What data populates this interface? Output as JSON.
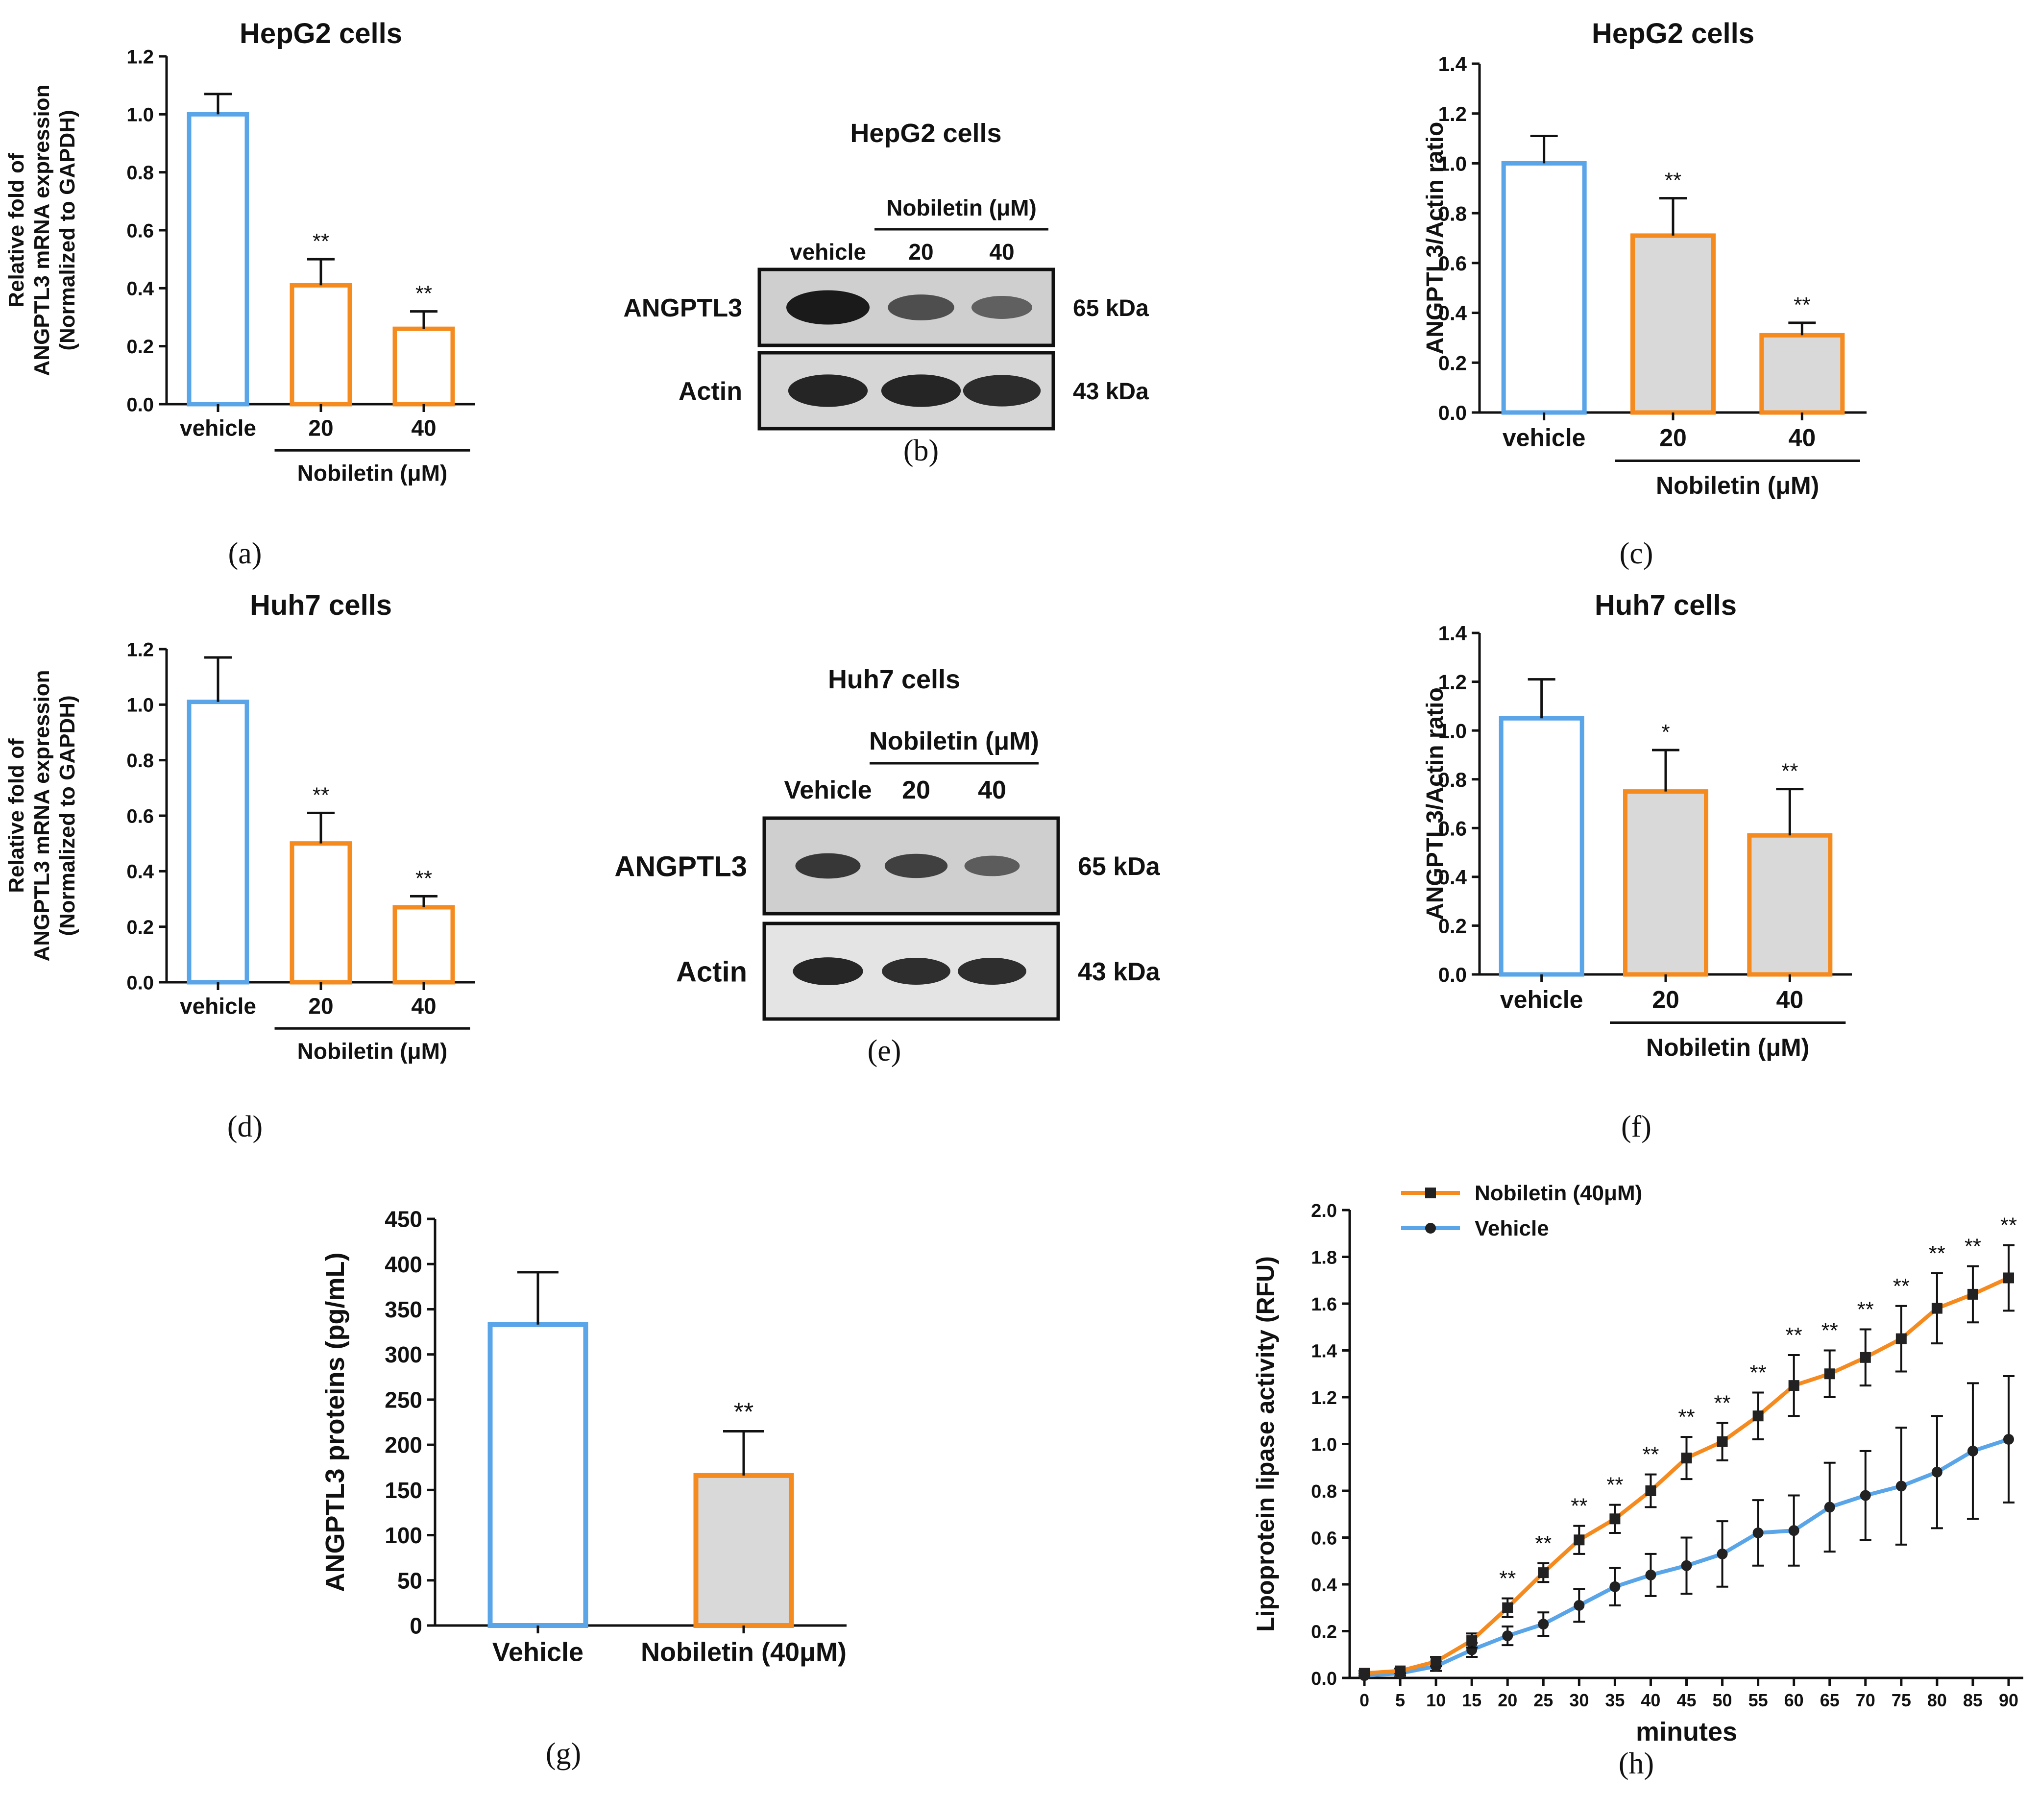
{
  "colors": {
    "vehicle": "#5aa4e8",
    "treatment": "#f58a1f",
    "treatment_fill": "#d9d9d9",
    "axis": "#111111",
    "blot_bg": "#d3d3d3",
    "band": "#1a1a1a"
  },
  "chart_data": [
    {
      "id": "a",
      "type": "bar",
      "panel_label": "(a)",
      "title": "HepG2 cells",
      "ylabel_lines": [
        "Relative fold of",
        "ANGPTL3 mRNA expression",
        "(Normalized to GAPDH)"
      ],
      "categories": [
        "vehicle",
        "20",
        "40"
      ],
      "values": [
        1.0,
        0.41,
        0.26
      ],
      "errors": [
        0.07,
        0.09,
        0.06
      ],
      "significance": [
        "",
        "**",
        "**"
      ],
      "filled": [
        false,
        false,
        false
      ],
      "ylim": [
        0,
        1.2
      ],
      "yticks": [
        "0.0",
        "0.2",
        "0.4",
        "0.6",
        "0.8",
        "1.0",
        "1.2"
      ],
      "group_label": "Nobiletin (μM)",
      "grid": false
    },
    {
      "id": "c",
      "type": "bar",
      "panel_label": "(c)",
      "title": "HepG2 cells",
      "ylabel_lines": [
        "ANGPTL3/Actin ratio"
      ],
      "categories": [
        "vehicle",
        "20",
        "40"
      ],
      "values": [
        1.0,
        0.71,
        0.31
      ],
      "errors": [
        0.11,
        0.15,
        0.05
      ],
      "significance": [
        "",
        "**",
        "**"
      ],
      "filled": [
        false,
        true,
        true
      ],
      "ylim": [
        0,
        1.4
      ],
      "yticks": [
        "0.0",
        "0.2",
        "0.4",
        "0.6",
        "0.8",
        "1.0",
        "1.2",
        "1.4"
      ],
      "group_label": "Nobiletin (μM)",
      "grid": false
    },
    {
      "id": "d",
      "type": "bar",
      "panel_label": "(d)",
      "title": "Huh7 cells",
      "ylabel_lines": [
        "Relative fold of",
        "ANGPTL3 mRNA expression",
        "(Normalized to GAPDH)"
      ],
      "categories": [
        "vehicle",
        "20",
        "40"
      ],
      "values": [
        1.01,
        0.5,
        0.27
      ],
      "errors": [
        0.16,
        0.11,
        0.04
      ],
      "significance": [
        "",
        "**",
        "**"
      ],
      "filled": [
        false,
        false,
        false
      ],
      "ylim": [
        0,
        1.2
      ],
      "yticks": [
        "0.0",
        "0.2",
        "0.4",
        "0.6",
        "0.8",
        "1.0",
        "1.2"
      ],
      "group_label": "Nobiletin (μM)",
      "grid": false
    },
    {
      "id": "f",
      "type": "bar",
      "panel_label": "(f)",
      "title": "Huh7 cells",
      "ylabel_lines": [
        "ANGPTL3/Actin ratio"
      ],
      "categories": [
        "vehicle",
        "20",
        "40"
      ],
      "values": [
        1.05,
        0.75,
        0.57
      ],
      "errors": [
        0.16,
        0.17,
        0.19
      ],
      "significance": [
        "",
        "*",
        "**"
      ],
      "filled": [
        false,
        true,
        true
      ],
      "ylim": [
        0,
        1.4
      ],
      "yticks": [
        "0.0",
        "0.2",
        "0.4",
        "0.6",
        "0.8",
        "1.0",
        "1.2",
        "1.4"
      ],
      "group_label": "Nobiletin (μM)",
      "grid": false
    },
    {
      "id": "g",
      "type": "bar",
      "panel_label": "(g)",
      "title": "",
      "ylabel_lines": [
        "ANGPTL3 proteins (pg/mL)"
      ],
      "categories": [
        "Vehicle",
        "Nobiletin (40μM)"
      ],
      "values": [
        333,
        166
      ],
      "errors": [
        58,
        49
      ],
      "significance": [
        "",
        "**"
      ],
      "filled": [
        false,
        true
      ],
      "ylim": [
        0,
        450
      ],
      "yticks": [
        "0",
        "50",
        "100",
        "150",
        "200",
        "250",
        "300",
        "350",
        "400",
        "450"
      ],
      "group_label": "",
      "grid": false
    },
    {
      "id": "h",
      "type": "line",
      "panel_label": "(h)",
      "title": "",
      "xlabel": "minutes",
      "ylabel": "Lipoprotein lipase activity (RFU)",
      "x": [
        0,
        5,
        10,
        15,
        20,
        25,
        30,
        35,
        40,
        45,
        50,
        55,
        60,
        65,
        70,
        75,
        80,
        85,
        90
      ],
      "xticks": [
        "0",
        "5",
        "10",
        "15",
        "20",
        "25",
        "30",
        "35",
        "40",
        "45",
        "50",
        "55",
        "60",
        "65",
        "70",
        "75",
        "80",
        "85",
        "90"
      ],
      "xlim": [
        0,
        90
      ],
      "ylim": [
        0,
        2.0
      ],
      "yticks": [
        "0.0",
        "0.2",
        "0.4",
        "0.6",
        "0.8",
        "1.0",
        "1.2",
        "1.4",
        "1.6",
        "1.8",
        "2.0"
      ],
      "legend_position": "top-left",
      "series": [
        {
          "name": "Nobiletin (40μM)",
          "marker": "square",
          "values": [
            0.02,
            0.03,
            0.07,
            0.16,
            0.3,
            0.45,
            0.59,
            0.68,
            0.8,
            0.94,
            1.01,
            1.12,
            1.25,
            1.3,
            1.37,
            1.45,
            1.58,
            1.64,
            1.71
          ],
          "errors": [
            0.01,
            0.01,
            0.02,
            0.03,
            0.04,
            0.04,
            0.06,
            0.06,
            0.07,
            0.09,
            0.08,
            0.1,
            0.13,
            0.1,
            0.12,
            0.14,
            0.15,
            0.12,
            0.14
          ],
          "significance": [
            "",
            "",
            "",
            "",
            "**",
            "**",
            "**",
            "**",
            "**",
            "**",
            "**",
            "**",
            "**",
            "**",
            "**",
            "**",
            "**",
            "**",
            "**"
          ]
        },
        {
          "name": "Vehicle",
          "marker": "circle",
          "values": [
            0.01,
            0.02,
            0.05,
            0.12,
            0.18,
            0.23,
            0.31,
            0.39,
            0.44,
            0.48,
            0.53,
            0.62,
            0.63,
            0.73,
            0.78,
            0.82,
            0.88,
            0.97,
            1.02
          ],
          "errors": [
            0.01,
            0.01,
            0.02,
            0.03,
            0.04,
            0.05,
            0.07,
            0.08,
            0.09,
            0.12,
            0.14,
            0.14,
            0.15,
            0.19,
            0.19,
            0.25,
            0.24,
            0.29,
            0.27
          ]
        }
      ]
    }
  ],
  "blots": [
    {
      "id": "b",
      "panel_label": "(b)",
      "title": "HepG2 cells",
      "treatment_label": "Nobiletin (μM)",
      "lanes": [
        "vehicle",
        "20",
        "40"
      ],
      "rows": [
        {
          "label": "ANGPTL3",
          "size": "65 kDa",
          "intensities": [
            1.0,
            0.55,
            0.4
          ]
        },
        {
          "label": "Actin",
          "size": "43 kDa",
          "intensities": [
            0.9,
            0.9,
            0.85
          ]
        }
      ]
    },
    {
      "id": "e",
      "panel_label": "(e)",
      "title": "Huh7 cells",
      "treatment_label": "Nobiletin (μM)",
      "lanes": [
        "Vehicle",
        "20",
        "40"
      ],
      "rows": [
        {
          "label": "ANGPTL3",
          "size": "65 kDa",
          "intensities": [
            0.75,
            0.68,
            0.45
          ]
        },
        {
          "label": "Actin",
          "size": "43 kDa",
          "intensities": [
            0.9,
            0.85,
            0.85
          ]
        }
      ]
    }
  ]
}
